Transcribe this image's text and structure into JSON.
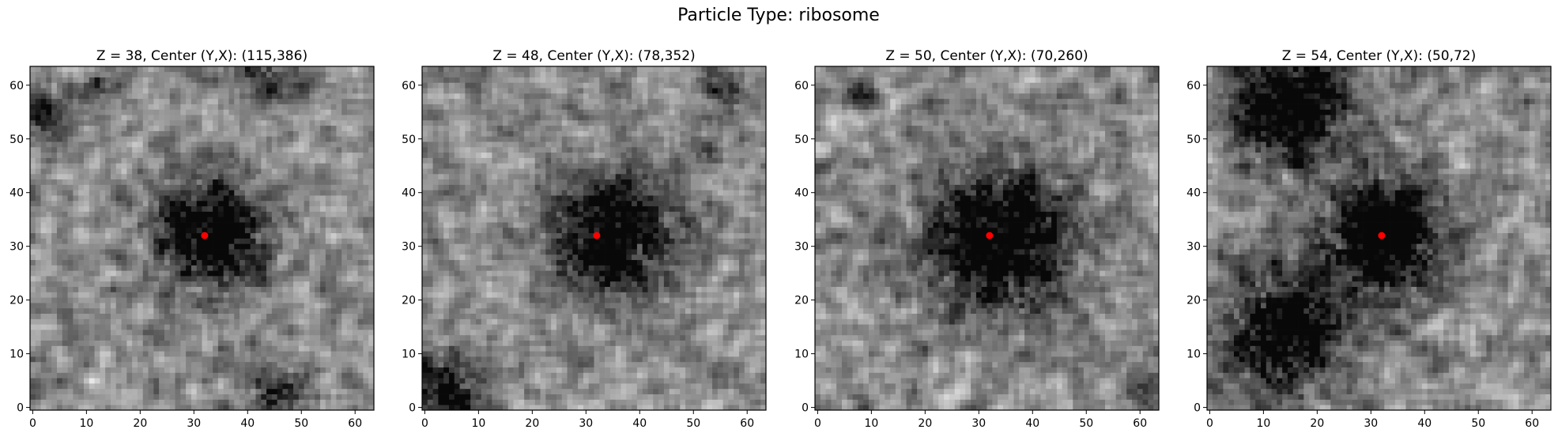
{
  "figure": {
    "suptitle": "Particle Type: ribosome"
  },
  "panels": [
    {
      "title": "Z = 38, Center (Y,X): (115,386)",
      "z": 38,
      "center": {
        "y": 32,
        "x": 32
      },
      "seed": 38,
      "dark_blobs": [
        [
          32,
          33,
          7,
          0.95
        ],
        [
          3,
          45,
          4,
          0.6
        ],
        [
          55,
          2,
          3,
          0.5
        ],
        [
          62,
          44,
          3,
          0.5
        ],
        [
          60,
          12,
          2,
          0.4
        ]
      ]
    },
    {
      "title": "Z = 48, Center (Y,X): (78,352)",
      "z": 48,
      "center": {
        "y": 32,
        "x": 32
      },
      "seed": 48,
      "dark_blobs": [
        [
          32,
          35,
          8,
          0.85
        ],
        [
          3,
          4,
          5,
          0.7
        ],
        [
          60,
          56,
          3,
          0.5
        ],
        [
          48,
          52,
          2,
          0.3
        ]
      ]
    },
    {
      "title": "Z = 50, Center (Y,X): (70,260)",
      "z": 50,
      "center": {
        "y": 32,
        "x": 32
      },
      "seed": 50,
      "dark_blobs": [
        [
          31,
          34,
          9,
          1.0
        ],
        [
          58,
          8,
          2,
          0.5
        ],
        [
          3,
          60,
          3,
          0.3
        ]
      ]
    },
    {
      "title": "Z = 54, Center (Y,X): (50,72)",
      "z": 54,
      "center": {
        "y": 32,
        "x": 32
      },
      "seed": 54,
      "dark_blobs": [
        [
          56,
          15,
          8,
          0.85
        ],
        [
          32,
          32,
          8,
          0.85
        ],
        [
          14,
          14,
          8,
          0.85
        ],
        [
          33,
          33,
          3,
          0.3
        ]
      ]
    }
  ],
  "axes": {
    "x_ticks": [
      0,
      10,
      20,
      30,
      40,
      50,
      60
    ],
    "y_ticks": [
      0,
      10,
      20,
      30,
      40,
      50,
      60
    ],
    "range": [
      -0.5,
      63.5
    ],
    "grid_size": 64
  },
  "colors": {
    "colormap": "gray",
    "marker": "#ff0000",
    "frame": "#000000"
  }
}
